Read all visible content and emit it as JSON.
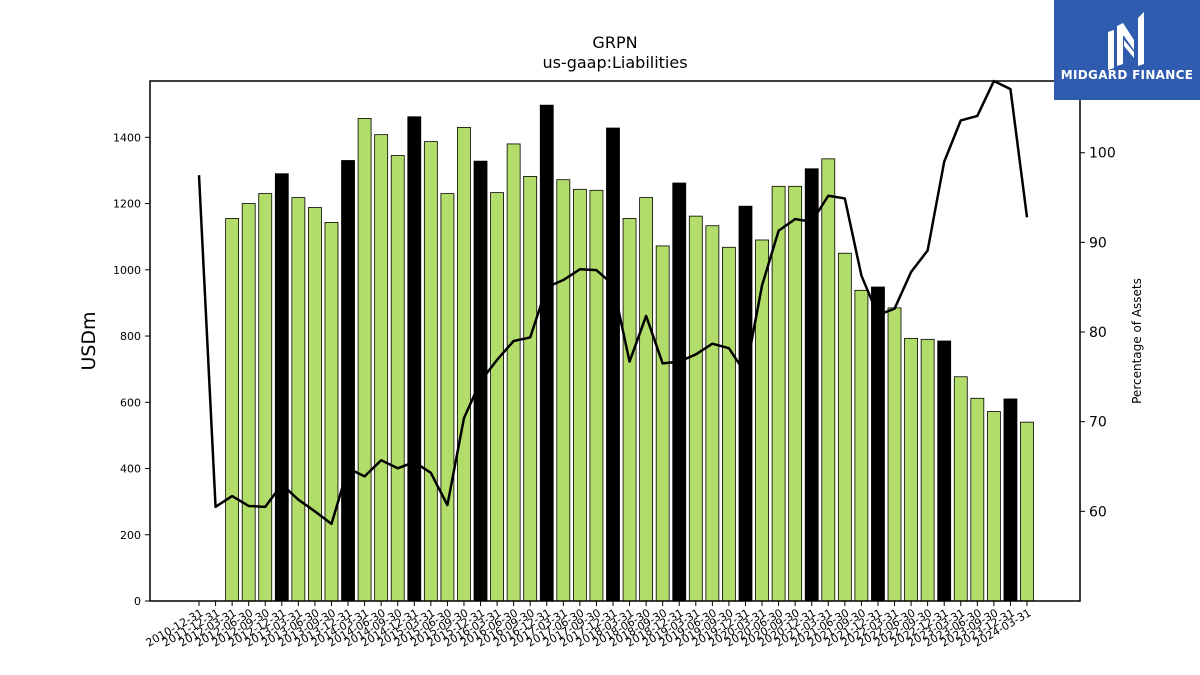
{
  "chart_data": {
    "type": "bar",
    "title": "GRPN",
    "subtitle": "us-gaap:Liabilities",
    "ylabel": "USDm",
    "y2label": "Percentage of Assets",
    "ylim": [
      0,
      1570
    ],
    "y2lim": [
      50,
      108
    ],
    "yticks": [
      0,
      200,
      400,
      600,
      800,
      1000,
      1200,
      1400
    ],
    "y2ticks": [
      60,
      70,
      80,
      90,
      100
    ],
    "grid": false,
    "colors": {
      "bar": "#b3dd6b",
      "highlight": "#000000",
      "line": "#000000"
    },
    "categories": [
      "2010-12-31",
      "2011-12-31",
      "2012-03-31",
      "2012-06-30",
      "2012-09-30",
      "2012-12-31",
      "2013-03-31",
      "2013-06-30",
      "2013-09-30",
      "2013-12-31",
      "2014-03-31",
      "2014-06-30",
      "2014-09-30",
      "2014-12-31",
      "2015-03-31",
      "2015-06-30",
      "2015-09-30",
      "2015-12-31",
      "2016-03-31",
      "2016-06-30",
      "2016-09-30",
      "2016-12-31",
      "2017-03-31",
      "2017-06-30",
      "2017-09-30",
      "2017-12-31",
      "2018-03-31",
      "2018-06-30",
      "2018-09-30",
      "2018-12-31",
      "2019-03-31",
      "2019-06-30",
      "2019-09-30",
      "2019-12-31",
      "2020-03-31",
      "2020-06-30",
      "2020-09-30",
      "2020-12-31",
      "2021-03-31",
      "2021-06-30",
      "2021-09-30",
      "2021-12-31",
      "2022-03-31",
      "2022-06-30",
      "2022-09-30",
      "2022-12-31",
      "2023-03-31",
      "2023-06-30",
      "2023-09-30",
      "2023-12-31",
      "2024-03-31"
    ],
    "series": [
      {
        "type": "bar",
        "values": [
          null,
          null,
          1155,
          1200,
          1230,
          1290,
          1218,
          1188,
          1143,
          1330,
          1457,
          1408,
          1345,
          1462,
          1387,
          1230,
          1430,
          1328,
          1233,
          1380,
          1282,
          1497,
          1272,
          1243,
          1240,
          1428,
          1155,
          1218,
          1072,
          1262,
          1162,
          1133,
          1068,
          1192,
          1090,
          1252,
          1252,
          1305,
          1335,
          1050,
          938,
          948,
          885,
          793,
          790,
          785,
          677,
          612,
          572,
          610,
          540
        ],
        "highlight": [
          false,
          false,
          false,
          false,
          false,
          true,
          false,
          false,
          false,
          true,
          false,
          false,
          false,
          true,
          false,
          false,
          false,
          true,
          false,
          false,
          false,
          true,
          false,
          false,
          false,
          true,
          false,
          false,
          false,
          true,
          false,
          false,
          false,
          true,
          false,
          false,
          false,
          true,
          false,
          false,
          false,
          true,
          false,
          false,
          false,
          true,
          false,
          false,
          false,
          true,
          false
        ]
      },
      {
        "type": "line",
        "axis": "y2",
        "values": [
          97.5,
          60.5,
          61.7,
          60.6,
          60.5,
          63.0,
          61.3,
          60.0,
          58.6,
          64.8,
          63.9,
          65.7,
          64.8,
          65.5,
          64.3,
          60.7,
          70.4,
          74.5,
          76.9,
          79.0,
          79.4,
          85.0,
          85.8,
          87.0,
          86.9,
          85.3,
          76.7,
          81.8,
          76.5,
          76.7,
          77.5,
          78.7,
          78.2,
          75.4,
          85.2,
          91.3,
          92.6,
          92.3,
          95.2,
          94.9,
          86.3,
          81.9,
          82.6,
          86.7,
          89.1,
          99.0,
          103.6,
          104.1,
          108.9,
          107.1,
          92.8
        ]
      }
    ]
  },
  "branding": {
    "logo_text": "MIDGARD FINANCE"
  }
}
